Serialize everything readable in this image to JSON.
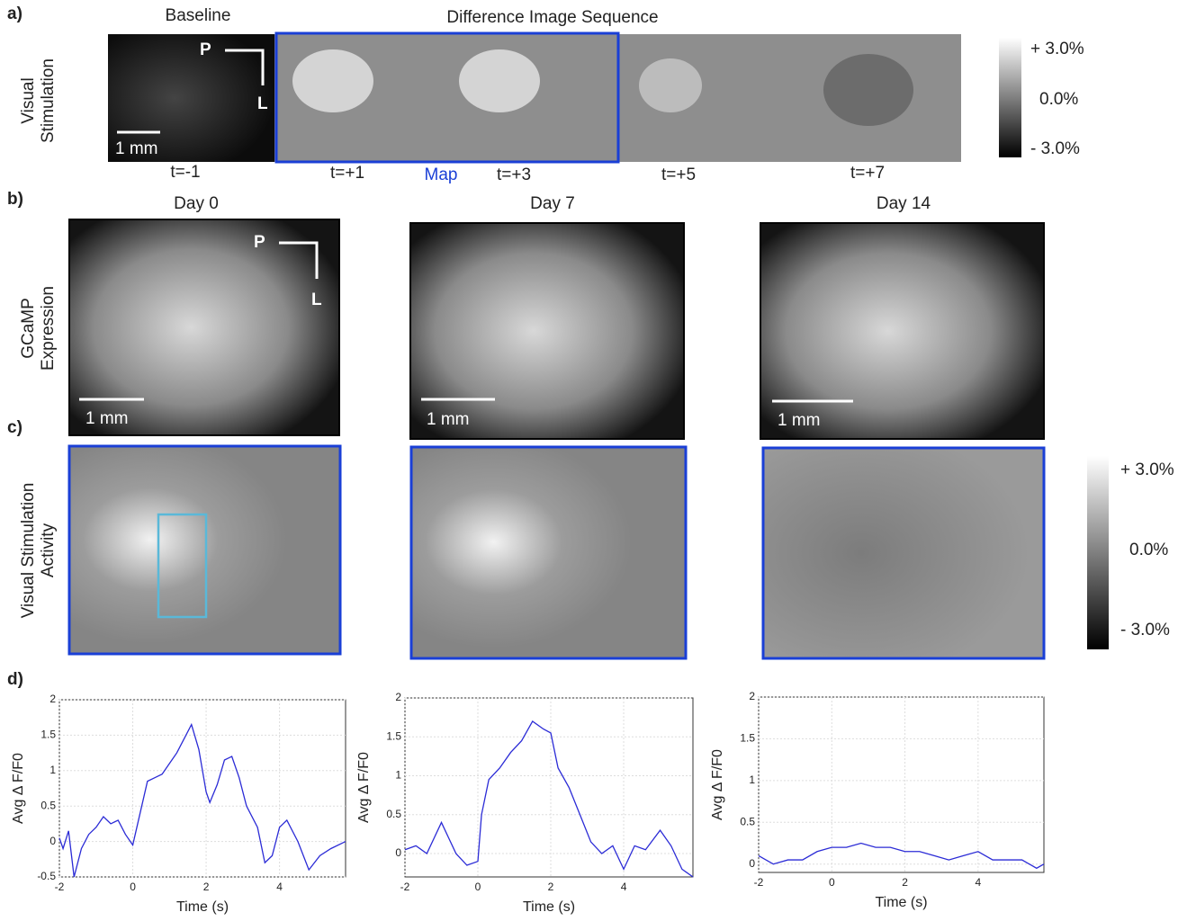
{
  "figure": {
    "panel_labels": [
      "a)",
      "b)",
      "c)",
      "d)"
    ],
    "panel_a": {
      "baseline_title": "Baseline",
      "sequence_title": "Difference Image Sequence",
      "row_label": [
        "Visual",
        "Stimulation"
      ],
      "scale": "1 mm",
      "arrow_p": "P",
      "arrow_l": "L",
      "times": [
        "t=-1",
        "t=+1",
        "t=+3",
        "t=+5",
        "t=+7"
      ],
      "map": "Map",
      "colorbar": [
        "+ 3.0%",
        "0.0%",
        "- 3.0%"
      ]
    },
    "panel_b": {
      "days": [
        "Day 0",
        "Day 7",
        "Day 14"
      ],
      "row_label": [
        "GCaMP",
        "Expression"
      ],
      "scales": [
        "1 mm",
        "1 mm",
        "1 mm"
      ],
      "arrow_p": "P",
      "arrow_l": "L"
    },
    "panel_c": {
      "row_label": [
        "Visual Stimulation",
        "Activity"
      ],
      "colorbar": [
        "+ 3.0%",
        "0.0%",
        "- 3.0%"
      ]
    }
  },
  "chart_data": [
    {
      "type": "line",
      "xlabel": "Time (s)",
      "ylabel": "Avg Δ F/F0",
      "x": [
        -2,
        -1.9,
        -1.75,
        -1.6,
        -1.4,
        -1.2,
        -1.0,
        -0.8,
        -0.6,
        -0.4,
        -0.2,
        0,
        0.2,
        0.4,
        0.6,
        0.8,
        1.0,
        1.2,
        1.4,
        1.6,
        1.8,
        2.0,
        2.1,
        2.3,
        2.5,
        2.7,
        2.9,
        3.1,
        3.4,
        3.6,
        3.8,
        4.0,
        4.2,
        4.5,
        4.8,
        5.1,
        5.4,
        5.8
      ],
      "series": [
        {
          "color": "#2b2bd6",
          "values": [
            0.05,
            -0.1,
            0.15,
            -0.5,
            -0.1,
            0.1,
            0.2,
            0.35,
            0.25,
            0.3,
            0.1,
            -0.05,
            0.4,
            0.85,
            0.9,
            0.95,
            1.1,
            1.25,
            1.45,
            1.65,
            1.3,
            0.7,
            0.55,
            0.8,
            1.15,
            1.2,
            0.9,
            0.5,
            0.2,
            -0.3,
            -0.2,
            0.2,
            0.3,
            0,
            -0.4,
            -0.2,
            -0.1,
            0
          ]
        }
      ],
      "xlim": [
        -2,
        5.8
      ],
      "ylim": [
        -0.5,
        2
      ],
      "xticks": [
        -2,
        0,
        2,
        4
      ],
      "yticks": [
        -0.5,
        0,
        0.5,
        1,
        1.5,
        2
      ],
      "grid": true
    },
    {
      "type": "line",
      "xlabel": "Time (s)",
      "ylabel": "Avg Δ F/F0",
      "x": [
        -2,
        -1.7,
        -1.4,
        -1.2,
        -1.0,
        -0.8,
        -0.6,
        -0.3,
        0,
        0.1,
        0.3,
        0.6,
        0.9,
        1.2,
        1.5,
        1.8,
        2.0,
        2.2,
        2.5,
        2.8,
        3.1,
        3.4,
        3.7,
        4.0,
        4.3,
        4.6,
        5.0,
        5.3,
        5.6,
        5.9
      ],
      "series": [
        {
          "color": "#2b2bd6",
          "values": [
            0.05,
            0.1,
            0,
            0.2,
            0.4,
            0.2,
            0,
            -0.15,
            -0.1,
            0.5,
            0.95,
            1.1,
            1.3,
            1.45,
            1.7,
            1.6,
            1.55,
            1.1,
            0.85,
            0.5,
            0.15,
            0,
            0.1,
            -0.2,
            0.1,
            0.05,
            0.3,
            0.1,
            -0.2,
            -0.3
          ]
        }
      ],
      "xlim": [
        -2,
        5.9
      ],
      "ylim": [
        -0.3,
        2
      ],
      "xticks": [
        -2,
        0,
        2,
        4
      ],
      "yticks": [
        0,
        0.5,
        1,
        1.5,
        2
      ],
      "grid": true
    },
    {
      "type": "line",
      "xlabel": "Time (s)",
      "ylabel": "Avg Δ F/F0",
      "x": [
        -2,
        -1.6,
        -1.2,
        -0.8,
        -0.4,
        0,
        0.4,
        0.8,
        1.2,
        1.6,
        2.0,
        2.4,
        2.8,
        3.2,
        3.6,
        4.0,
        4.4,
        4.8,
        5.2,
        5.6,
        5.8
      ],
      "series": [
        {
          "color": "#2b2bd6",
          "values": [
            0.1,
            0,
            0.05,
            0.05,
            0.15,
            0.2,
            0.2,
            0.25,
            0.2,
            0.2,
            0.15,
            0.15,
            0.1,
            0.05,
            0.1,
            0.15,
            0.05,
            0.05,
            0.05,
            -0.05,
            0
          ]
        }
      ],
      "xlim": [
        -2,
        5.8
      ],
      "ylim": [
        -0.1,
        2
      ],
      "xticks": [
        -2,
        0,
        2,
        4
      ],
      "yticks": [
        0,
        0.5,
        1,
        1.5,
        2
      ],
      "grid": true
    }
  ]
}
